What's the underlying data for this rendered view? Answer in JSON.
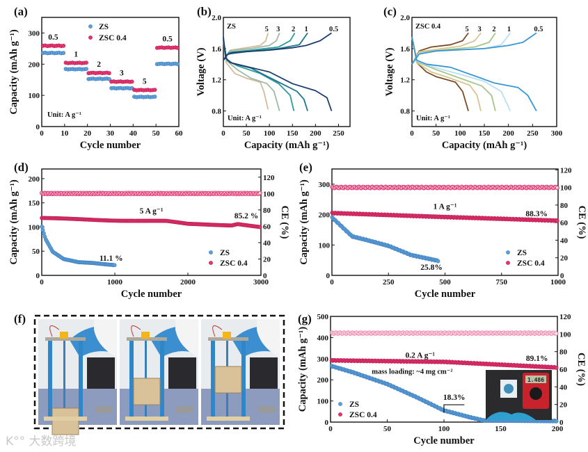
{
  "colors": {
    "ZS": "#5f9fd8",
    "ZSC 0.4": "#e6326e",
    "ZSC_CE_g": "#f08fb3",
    "axis": "#111111"
  },
  "watermark": "大数跨境",
  "panel_f": {
    "label": "(f)",
    "photos": 3
  },
  "chart_data": [
    {
      "id": "a",
      "panel_label": "(a)",
      "type": "scatter",
      "xlabel": "Cycle number",
      "ylabel": "Capacity (mAh g⁻¹)",
      "xlim": [
        0,
        60
      ],
      "ylim": [
        0,
        350
      ],
      "xticks": [
        0,
        10,
        20,
        30,
        40,
        50,
        60
      ],
      "yticks": [
        0,
        100,
        200,
        300
      ],
      "legend": [
        "ZS",
        "ZSC 0.4"
      ],
      "legend_position": "top-center",
      "unit_note": "Unit: A g⁻¹",
      "segments": [
        {
          "rate": "0.5",
          "start": 1,
          "end": 10,
          "ZS": 236,
          "ZSC 0.4": 259
        },
        {
          "rate": "1",
          "start": 11,
          "end": 20,
          "ZS": 184,
          "ZSC 0.4": 204
        },
        {
          "rate": "2",
          "start": 21,
          "end": 30,
          "ZS": 153,
          "ZSC 0.4": 172
        },
        {
          "rate": "3",
          "start": 31,
          "end": 40,
          "ZS": 123,
          "ZSC 0.4": 144
        },
        {
          "rate": "5",
          "start": 41,
          "end": 50,
          "ZS": 95,
          "ZSC 0.4": 117
        },
        {
          "rate": "0.5",
          "start": 51,
          "end": 60,
          "ZS": 201,
          "ZSC 0.4": 253
        }
      ]
    },
    {
      "id": "b",
      "panel_label": "(b)",
      "type": "line",
      "xlabel": "Capacity (mAh g⁻¹)",
      "ylabel": "Voltage (V)",
      "xlim": [
        0,
        275
      ],
      "ylim": [
        0.6,
        2.0
      ],
      "xticks": [
        0,
        50,
        100,
        150,
        200,
        250
      ],
      "yticks": [
        0.8,
        1.2,
        1.6,
        2.0
      ],
      "sample": "ZS",
      "unit_note": "Unit: A g⁻¹",
      "curves": [
        {
          "rate": "5",
          "color": "#d3bc9b",
          "charge": [
            [
              0,
              1.45
            ],
            [
              15,
              1.58
            ],
            [
              50,
              1.61
            ],
            [
              80,
              1.64
            ],
            [
              92,
              1.7
            ],
            [
              97,
              1.8
            ]
          ],
          "discharge": [
            [
              0,
              1.7
            ],
            [
              6,
              1.42
            ],
            [
              25,
              1.28
            ],
            [
              50,
              1.22
            ],
            [
              80,
              1.17
            ],
            [
              88,
              1.05
            ],
            [
              97,
              0.82
            ]
          ]
        },
        {
          "rate": "3",
          "color": "#9fb9a6",
          "charge": [
            [
              0,
              1.45
            ],
            [
              15,
              1.57
            ],
            [
              60,
              1.6
            ],
            [
              100,
              1.64
            ],
            [
              115,
              1.7
            ],
            [
              122,
              1.8
            ]
          ],
          "discharge": [
            [
              0,
              1.7
            ],
            [
              8,
              1.44
            ],
            [
              30,
              1.33
            ],
            [
              60,
              1.22
            ],
            [
              95,
              1.15
            ],
            [
              110,
              1.05
            ],
            [
              122,
              0.8
            ]
          ]
        },
        {
          "rate": "2",
          "color": "#2b9c98",
          "charge": [
            [
              0,
              1.45
            ],
            [
              12,
              1.55
            ],
            [
              60,
              1.58
            ],
            [
              120,
              1.62
            ],
            [
              145,
              1.7
            ],
            [
              155,
              1.8
            ]
          ],
          "discharge": [
            [
              0,
              1.7
            ],
            [
              8,
              1.45
            ],
            [
              30,
              1.38
            ],
            [
              80,
              1.28
            ],
            [
              120,
              1.15
            ],
            [
              145,
              1.0
            ],
            [
              153,
              0.8
            ]
          ]
        },
        {
          "rate": "1",
          "color": "#1f7490",
          "charge": [
            [
              0,
              1.45
            ],
            [
              10,
              1.53
            ],
            [
              50,
              1.56
            ],
            [
              120,
              1.6
            ],
            [
              165,
              1.65
            ],
            [
              183,
              1.8
            ]
          ],
          "discharge": [
            [
              0,
              1.72
            ],
            [
              6,
              1.47
            ],
            [
              20,
              1.41
            ],
            [
              60,
              1.35
            ],
            [
              120,
              1.17
            ],
            [
              160,
              1.05
            ],
            [
              175,
              0.95
            ],
            [
              183,
              0.8
            ]
          ]
        },
        {
          "rate": "0.5",
          "color": "#1c3d6b",
          "charge": [
            [
              0,
              1.45
            ],
            [
              8,
              1.52
            ],
            [
              20,
              1.55
            ],
            [
              100,
              1.58
            ],
            [
              150,
              1.61
            ],
            [
              180,
              1.64
            ],
            [
              210,
              1.7
            ],
            [
              235,
              1.8
            ]
          ],
          "discharge": [
            [
              0,
              1.75
            ],
            [
              5,
              1.48
            ],
            [
              15,
              1.42
            ],
            [
              50,
              1.37
            ],
            [
              100,
              1.3
            ],
            [
              150,
              1.15
            ],
            [
              200,
              1.06
            ],
            [
              225,
              0.97
            ],
            [
              235,
              0.8
            ]
          ]
        }
      ]
    },
    {
      "id": "c",
      "panel_label": "(c)",
      "type": "line",
      "xlabel": "Capacity (mAh g⁻¹)",
      "ylabel": "Voltage (V)",
      "xlim": [
        0,
        300
      ],
      "ylim": [
        0.6,
        2.0
      ],
      "xticks": [
        0,
        50,
        100,
        150,
        200,
        250,
        300
      ],
      "yticks": [
        0.8,
        1.2,
        1.6,
        2.0
      ],
      "sample": "ZSC 0.4",
      "unit_note": "Unit: A g⁻¹",
      "curves": [
        {
          "rate": "5",
          "color": "#7b4a25",
          "charge": [
            [
              0,
              1.4
            ],
            [
              15,
              1.57
            ],
            [
              40,
              1.62
            ],
            [
              80,
              1.65
            ],
            [
              105,
              1.7
            ],
            [
              117,
              1.8
            ]
          ],
          "discharge": [
            [
              0,
              1.75
            ],
            [
              10,
              1.42
            ],
            [
              30,
              1.3
            ],
            [
              50,
              1.24
            ],
            [
              90,
              1.17
            ],
            [
              105,
              1.05
            ],
            [
              117,
              0.8
            ]
          ]
        },
        {
          "rate": "3",
          "color": "#d8c48f",
          "charge": [
            [
              0,
              1.4
            ],
            [
              15,
              1.56
            ],
            [
              50,
              1.59
            ],
            [
              100,
              1.63
            ],
            [
              130,
              1.7
            ],
            [
              143,
              1.8
            ]
          ],
          "discharge": [
            [
              0,
              1.75
            ],
            [
              10,
              1.42
            ],
            [
              40,
              1.3
            ],
            [
              80,
              1.22
            ],
            [
              120,
              1.13
            ],
            [
              135,
              1.0
            ],
            [
              143,
              0.8
            ]
          ]
        },
        {
          "rate": "2",
          "color": "#a6c588",
          "charge": [
            [
              0,
              1.4
            ],
            [
              15,
              1.55
            ],
            [
              60,
              1.58
            ],
            [
              130,
              1.62
            ],
            [
              160,
              1.68
            ],
            [
              173,
              1.8
            ]
          ],
          "discharge": [
            [
              0,
              1.75
            ],
            [
              10,
              1.43
            ],
            [
              50,
              1.33
            ],
            [
              100,
              1.22
            ],
            [
              145,
              1.12
            ],
            [
              165,
              1.0
            ],
            [
              173,
              0.8
            ]
          ]
        },
        {
          "rate": "1",
          "color": "#b9e0f2",
          "charge": [
            [
              0,
              1.4
            ],
            [
              15,
              1.54
            ],
            [
              60,
              1.57
            ],
            [
              150,
              1.6
            ],
            [
              185,
              1.65
            ],
            [
              204,
              1.8
            ]
          ],
          "discharge": [
            [
              0,
              1.75
            ],
            [
              10,
              1.44
            ],
            [
              40,
              1.37
            ],
            [
              100,
              1.27
            ],
            [
              150,
              1.18
            ],
            [
              185,
              1.05
            ],
            [
              204,
              0.8
            ]
          ]
        },
        {
          "rate": "0.5",
          "color": "#3796d4",
          "charge": [
            [
              0,
              1.4
            ],
            [
              15,
              1.53
            ],
            [
              50,
              1.57
            ],
            [
              150,
              1.6
            ],
            [
              200,
              1.64
            ],
            [
              230,
              1.68
            ],
            [
              258,
              1.8
            ]
          ],
          "discharge": [
            [
              0,
              1.75
            ],
            [
              10,
              1.45
            ],
            [
              30,
              1.4
            ],
            [
              80,
              1.36
            ],
            [
              130,
              1.25
            ],
            [
              170,
              1.16
            ],
            [
              220,
              1.1
            ],
            [
              240,
              1.0
            ],
            [
              258,
              0.8
            ]
          ]
        }
      ]
    },
    {
      "id": "d",
      "panel_label": "(d)",
      "type": "scatter",
      "xlabel": "Cycle number",
      "ylabel": "Capacity (mAh g⁻¹)",
      "y2label": "CE (%)",
      "xlim": [
        0,
        3000
      ],
      "ylim": [
        0,
        220
      ],
      "y2lim": [
        0,
        130
      ],
      "xticks": [
        0,
        1000,
        2000,
        3000
      ],
      "yticks": [
        0,
        50,
        100,
        150,
        200
      ],
      "y2ticks": [
        0,
        20,
        40,
        60,
        80,
        100,
        120
      ],
      "legend": [
        "ZS",
        "ZSC 0.4"
      ],
      "legend_position": "bottom-right",
      "annotations": {
        "rate": "5 A g⁻¹",
        "zsc_retention": "85.2 %",
        "zs_retention": "11.1 %"
      },
      "series": [
        {
          "name": "ZS",
          "capacity": [
            [
              1,
              100
            ],
            [
              50,
              75
            ],
            [
              150,
              48
            ],
            [
              300,
              33
            ],
            [
              500,
              27
            ],
            [
              700,
              26
            ],
            [
              1000,
              22
            ]
          ],
          "ce": [
            [
              1,
              100
            ],
            [
              1000,
              100
            ]
          ]
        },
        {
          "name": "ZSC 0.4",
          "capacity": [
            [
              1,
              118
            ],
            [
              1000,
              114
            ],
            [
              1700,
              112
            ],
            [
              2000,
              106
            ],
            [
              2600,
              104
            ],
            [
              2680,
              107
            ],
            [
              3000,
              100
            ]
          ],
          "ce": [
            [
              1,
              100
            ],
            [
              3000,
              100
            ]
          ]
        }
      ]
    },
    {
      "id": "e",
      "panel_label": "(e)",
      "type": "scatter",
      "xlabel": "Cycle number",
      "ylabel": "Capacity (mAh g⁻¹)",
      "y2label": "CE (%)",
      "xlim": [
        0,
        1000
      ],
      "ylim": [
        0,
        350
      ],
      "y2lim": [
        0,
        121
      ],
      "xticks": [
        0,
        250,
        500,
        750,
        1000
      ],
      "yticks": [
        0,
        100,
        200,
        300
      ],
      "y2ticks": [
        0,
        20,
        40,
        60,
        80,
        100,
        120
      ],
      "legend": [
        "ZS",
        "ZSC 0.4"
      ],
      "legend_position": "bottom-right",
      "annotations": {
        "rate": "1 A g⁻¹",
        "zsc_retention": "88.3%",
        "zs_retention": "25.8%"
      },
      "series": [
        {
          "name": "ZS",
          "capacity": [
            [
              1,
              190
            ],
            [
              30,
              170
            ],
            [
              90,
              128
            ],
            [
              150,
              117
            ],
            [
              250,
              97
            ],
            [
              350,
              67
            ],
            [
              470,
              48
            ]
          ],
          "ce": [
            [
              1,
              100
            ],
            [
              470,
              100
            ]
          ]
        },
        {
          "name": "ZSC 0.4",
          "capacity": [
            [
              1,
              205
            ],
            [
              500,
              192
            ],
            [
              1000,
              180
            ]
          ],
          "ce": [
            [
              1,
              100
            ],
            [
              1000,
              100
            ]
          ]
        }
      ]
    },
    {
      "id": "g",
      "panel_label": "(g)",
      "type": "scatter",
      "xlabel": "Cycle number",
      "ylabel": "Capacity (mAh g⁻¹)",
      "y2label": "CE (%)",
      "xlim": [
        0,
        200
      ],
      "ylim": [
        0,
        500
      ],
      "y2lim": [
        0,
        120
      ],
      "xticks": [
        0,
        50,
        100,
        150,
        200
      ],
      "yticks": [
        0,
        100,
        200,
        300,
        400,
        500
      ],
      "y2ticks": [
        0,
        20,
        40,
        60,
        80,
        100,
        120
      ],
      "legend": [
        "ZS",
        "ZSC 0.4"
      ],
      "legend_position": "bottom-left",
      "annotations": {
        "rate": "0.2 A g⁻¹",
        "zsc_retention": "89.1%",
        "zs_retention": "18.3%",
        "mass_loading": "mass loading: ~4 mg cm⁻²",
        "meter_reading": "1.486"
      },
      "series": [
        {
          "name": "ZS",
          "capacity": [
            [
              1,
              265
            ],
            [
              20,
              235
            ],
            [
              50,
              180
            ],
            [
              75,
              120
            ],
            [
              100,
              55
            ],
            [
              125,
              20
            ],
            [
              135,
              8
            ],
            [
              200,
              5
            ]
          ]
        },
        {
          "name": "ZSC 0.4",
          "capacity": [
            [
              1,
              292
            ],
            [
              100,
              285
            ],
            [
              200,
              258
            ]
          ],
          "ce": [
            [
              1,
              101
            ],
            [
              200,
              101
            ]
          ]
        }
      ]
    }
  ]
}
